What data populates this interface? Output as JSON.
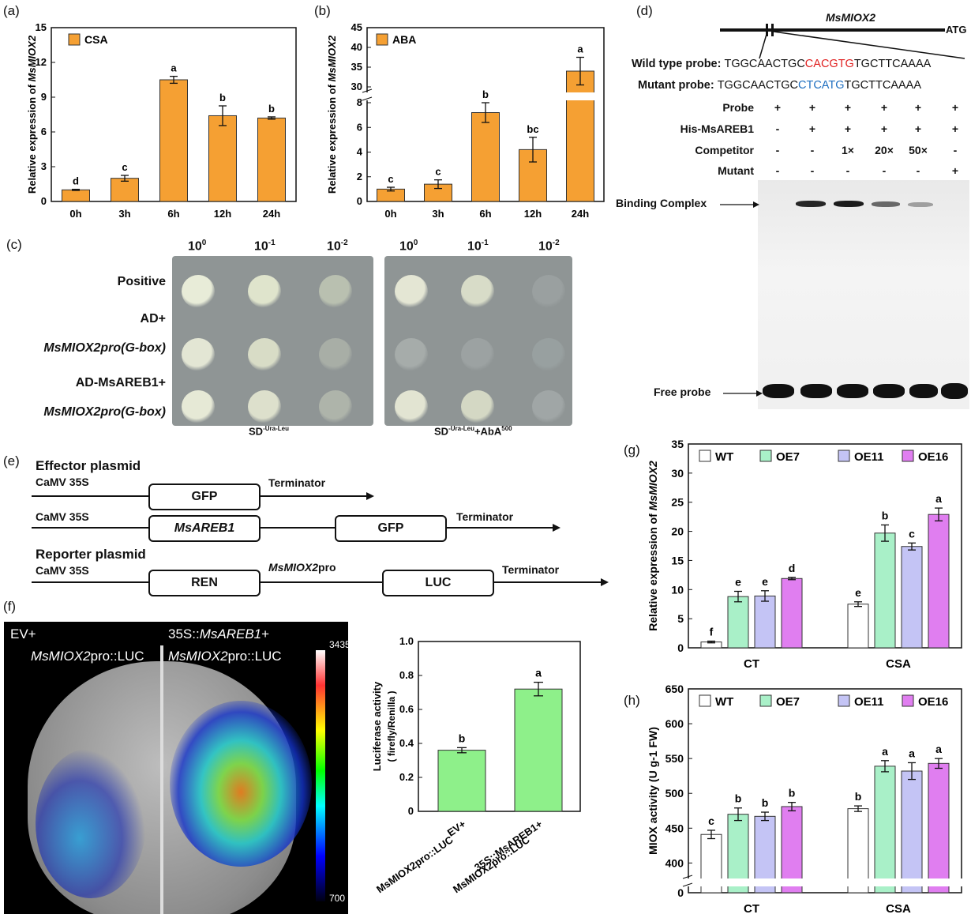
{
  "panels": {
    "a": "(a)",
    "b": "(b)",
    "c": "(c)",
    "d": "(d)",
    "e": "(e)",
    "f": "(f)",
    "g": "(g)",
    "h": "(h)"
  },
  "colors": {
    "orange": "#f5a033",
    "green": "#a9f0c8",
    "lavender": "#c4c4f5",
    "magenta": "#e07ef0",
    "lightgreen": "#8ef08a",
    "white": "#ffffff",
    "seq_red": "#e02020",
    "seq_blue": "#1f6fc0"
  },
  "chart_data": [
    {
      "id": "a",
      "type": "bar",
      "title": "",
      "legend": [
        "CSA"
      ],
      "legend_position": "top-left",
      "categories": [
        "0h",
        "3h",
        "6h",
        "12h",
        "24h"
      ],
      "values": [
        1.0,
        2.0,
        10.5,
        7.4,
        7.2
      ],
      "errors": [
        0.05,
        0.25,
        0.3,
        0.85,
        0.1
      ],
      "letters": [
        "d",
        "c",
        "a",
        "b",
        "b"
      ],
      "ylabel": "Relative expression of MsMIOX2",
      "ylabel_italic_part": "MsMIOX2",
      "ylim": [
        0,
        15
      ],
      "yticks": [
        0,
        3,
        6,
        9,
        12,
        15
      ]
    },
    {
      "id": "b",
      "type": "bar",
      "title": "",
      "legend": [
        "ABA"
      ],
      "legend_position": "top-left",
      "categories": [
        "0h",
        "3h",
        "6h",
        "12h",
        "24h"
      ],
      "values": [
        1.0,
        1.4,
        7.2,
        4.2,
        34.0
      ],
      "errors": [
        0.15,
        0.35,
        0.8,
        1.0,
        3.5
      ],
      "letters": [
        "c",
        "c",
        "b",
        "bc",
        "a"
      ],
      "ylabel": "Relative expression of MsMIOX2",
      "ylabel_italic_part": "MsMIOX2",
      "ylim_lower": [
        0,
        8
      ],
      "ylim_upper": [
        29,
        45
      ],
      "yticks_lower": [
        0,
        2,
        4,
        6,
        8
      ],
      "yticks_upper": [
        30,
        35,
        40,
        45
      ],
      "axis_break": true
    },
    {
      "id": "f",
      "type": "bar",
      "categories": [
        "EV+ MsMIOX2pro::LUC",
        "35S::MsAREB1+ MsMIOX2pro::LUC"
      ],
      "category_lines": [
        [
          "EV+",
          "MsMIOX2pro::LUC"
        ],
        [
          "35S::MsAREB1+",
          "MsMIOX2pro::LUC"
        ]
      ],
      "values": [
        0.36,
        0.72
      ],
      "errors": [
        0.015,
        0.04
      ],
      "letters": [
        "b",
        "a"
      ],
      "ylabel": "Luciferase activity",
      "ylabel2": "( firefly/Renilla )",
      "ylim": [
        0,
        1.0
      ],
      "yticks": [
        0,
        0.2,
        0.4,
        0.6,
        0.8,
        1.0
      ]
    },
    {
      "id": "g",
      "type": "bar",
      "categories": [
        "CT",
        "CSA"
      ],
      "series": [
        {
          "name": "WT",
          "values": [
            1.0,
            7.5
          ],
          "errors": [
            0.15,
            0.4
          ],
          "letters": [
            "f",
            "e"
          ]
        },
        {
          "name": "OE7",
          "values": [
            8.8,
            19.7
          ],
          "errors": [
            0.9,
            1.4
          ],
          "letters": [
            "e",
            "b"
          ]
        },
        {
          "name": "OE11",
          "values": [
            8.9,
            17.4
          ],
          "errors": [
            0.9,
            0.6
          ],
          "letters": [
            "e",
            "c"
          ]
        },
        {
          "name": "OE16",
          "values": [
            11.9,
            22.9
          ],
          "errors": [
            0.2,
            1.1
          ],
          "letters": [
            "d",
            "a"
          ]
        }
      ],
      "legend_position": "top",
      "ylabel": "Relative expression of MsMIOX2",
      "ylabel_italic_part": "MsMIOX2",
      "ylim": [
        0,
        35
      ],
      "yticks": [
        0,
        5,
        10,
        15,
        20,
        25,
        30,
        35
      ]
    },
    {
      "id": "h",
      "type": "bar",
      "categories": [
        "CT",
        "CSA"
      ],
      "series": [
        {
          "name": "WT",
          "values": [
            441,
            478
          ],
          "errors": [
            6,
            4
          ],
          "letters": [
            "c",
            "b"
          ]
        },
        {
          "name": "OE7",
          "values": [
            470,
            539
          ],
          "errors": [
            9,
            8
          ],
          "letters": [
            "b",
            "a"
          ]
        },
        {
          "name": "OE11",
          "values": [
            467,
            532
          ],
          "errors": [
            6,
            12
          ],
          "letters": [
            "b",
            "a"
          ]
        },
        {
          "name": "OE16",
          "values": [
            481,
            543
          ],
          "errors": [
            6,
            7
          ],
          "letters": [
            "b",
            "a"
          ]
        }
      ],
      "legend_position": "top",
      "ylabel": "MIOX activity (U g-1 FW)",
      "ylim_lower": [
        0,
        0
      ],
      "ylim_upper": [
        380,
        650
      ],
      "yticks": [
        0,
        400,
        450,
        500,
        550,
        600,
        650
      ],
      "axis_break": true
    }
  ],
  "panel_c": {
    "dilutions": [
      "10",
      "10",
      "10"
    ],
    "dilution_exp": [
      "0",
      "-1",
      "-2"
    ],
    "rows": [
      "Positive",
      "AD+",
      "MsMIOX2pro(G-box)",
      "AD-MsAREB1+",
      "MsMIOX2pro(G-box)"
    ],
    "plate1_label": "SD",
    "plate1_sup": "-Ura-Leu",
    "plate2_label": "SD",
    "plate2_sup": "-Ura-Leu",
    "plate2_suffix": "+AbA",
    "plate2_suffix_sup": "500"
  },
  "panel_d": {
    "gene": "MsMIOX2",
    "atg": "ATG",
    "wt_label": "Wild type probe:",
    "wt_prefix": "TGGCAACTGC",
    "wt_motif": "CACGTG",
    "wt_suffix": "TGCTTCAAAA",
    "mut_label": "Mutant probe:",
    "mut_prefix": "TGGCAACTGC",
    "mut_motif": "CTCATG",
    "mut_suffix": "TGCTTCAAAA",
    "table_rows": [
      {
        "label": "Probe",
        "cells": [
          "+",
          "+",
          "+",
          "+",
          "+",
          "+"
        ]
      },
      {
        "label": "His-MsAREB1",
        "cells": [
          "-",
          "+",
          "+",
          "+",
          "+",
          "+"
        ]
      },
      {
        "label": "Competitor",
        "cells": [
          "-",
          "-",
          "1×",
          "20×",
          "50×",
          "-"
        ]
      },
      {
        "label": "Mutant",
        "cells": [
          "-",
          "-",
          "-",
          "-",
          "-",
          "+"
        ]
      }
    ],
    "binding_complex": "Binding Complex",
    "free_probe": "Free probe"
  },
  "panel_e": {
    "effector_title": "Effector plasmid",
    "reporter_title": "Reporter plasmid",
    "promoter": "CaMV 35S",
    "gfp": "GFP",
    "terminator": "Terminator",
    "msareb1": "MsAREB1",
    "ren": "REN",
    "luc": "LUC",
    "miox_pro_italic": "MsMIOX2",
    "miox_pro_suffix": "pro"
  },
  "panel_f_image": {
    "left_line1": "EV+",
    "left_line2_italic": "MsMIOX2",
    "left_line2_suffix": "pro::LUC",
    "right_line1_prefix": "35S::",
    "right_line1_italic": "MsAREB1",
    "right_line1_suffix": "+",
    "right_line2_italic": "MsMIOX2",
    "right_line2_suffix": "pro::LUC",
    "scale_max": "3435",
    "scale_min": "700"
  }
}
